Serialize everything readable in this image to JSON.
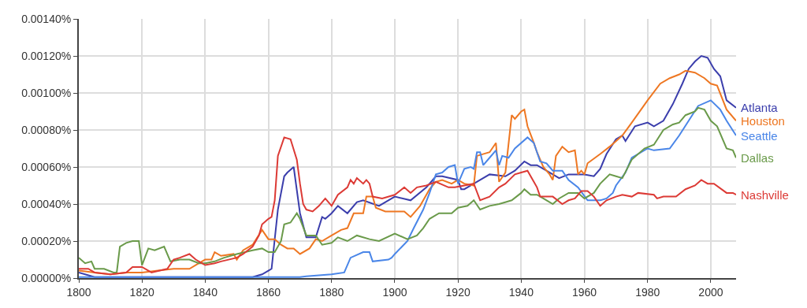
{
  "chart_data": {
    "type": "line",
    "xlim": [
      1800,
      2008
    ],
    "xticks": [
      1800,
      1820,
      1840,
      1860,
      1880,
      1900,
      1920,
      1940,
      1960,
      1980,
      2000
    ],
    "ylim": [
      0,
      0.0014
    ],
    "yticks": [
      {
        "value": 0,
        "label": "0.00000%"
      },
      {
        "value": 0.0002,
        "label": "0.00020%"
      },
      {
        "value": 0.0004,
        "label": "0.00040%"
      },
      {
        "value": 0.0006,
        "label": "0.00060%"
      },
      {
        "value": 0.0008,
        "label": "0.00080%"
      },
      {
        "value": 0.001,
        "label": "0.00100%"
      },
      {
        "value": 0.0012,
        "label": "0.00120%"
      },
      {
        "value": 0.0014,
        "label": "0.00140%"
      }
    ],
    "grid": true,
    "legend": false,
    "marker": "none",
    "line_style": "solid",
    "series": [
      {
        "name": "Atlanta",
        "color": "#3b3eac",
        "x": [
          1800,
          1805,
          1820,
          1855,
          1858,
          1860,
          1861,
          1863,
          1865,
          1866,
          1868,
          1870,
          1872,
          1875,
          1877,
          1878,
          1880,
          1882,
          1885,
          1888,
          1890,
          1895,
          1900,
          1905,
          1910,
          1913,
          1915,
          1920,
          1921,
          1922,
          1925,
          1930,
          1935,
          1938,
          1941,
          1943,
          1945,
          1948,
          1952,
          1955,
          1960,
          1963,
          1965,
          1967,
          1970,
          1972,
          1973,
          1976,
          1980,
          1982,
          1985,
          1988,
          1991,
          1993,
          1995,
          1997,
          1999,
          2001,
          2003,
          2005,
          2008
        ],
        "values": [
          3e-05,
          5e-06,
          5e-06,
          5e-06,
          2e-05,
          4e-05,
          5e-05,
          0.00037,
          0.00055,
          0.00057,
          0.0006,
          0.00035,
          0.00022,
          0.00022,
          0.00033,
          0.00032,
          0.00035,
          0.00039,
          0.00035,
          0.00041,
          0.00042,
          0.00039,
          0.00044,
          0.00042,
          0.00049,
          0.00055,
          0.00055,
          0.00053,
          0.00048,
          0.00048,
          0.00051,
          0.00056,
          0.00055,
          0.00058,
          0.00063,
          0.00061,
          0.00061,
          0.00058,
          0.00054,
          0.00056,
          0.00056,
          0.00055,
          0.00059,
          0.00067,
          0.00075,
          0.00077,
          0.00074,
          0.00082,
          0.00084,
          0.00082,
          0.00085,
          0.00094,
          0.00105,
          0.00113,
          0.00117,
          0.0012,
          0.00119,
          0.00113,
          0.00109,
          0.00096,
          0.00092
        ]
      },
      {
        "name": "Houston",
        "color": "#ee7722",
        "x": [
          1800,
          1805,
          1810,
          1815,
          1820,
          1825,
          1830,
          1835,
          1838,
          1840,
          1842,
          1843,
          1845,
          1849,
          1850,
          1852,
          1855,
          1858,
          1860,
          1862,
          1864,
          1866,
          1868,
          1870,
          1873,
          1875,
          1877,
          1880,
          1883,
          1885,
          1887,
          1890,
          1891,
          1893,
          1894,
          1897,
          1900,
          1903,
          1905,
          1908,
          1911,
          1913,
          1915,
          1918,
          1920,
          1922,
          1925,
          1926,
          1930,
          1932,
          1933,
          1935,
          1937,
          1938,
          1940,
          1941,
          1942,
          1944,
          1945,
          1947,
          1949,
          1950,
          1951,
          1953,
          1955,
          1957,
          1958,
          1959,
          1960,
          1961,
          1965,
          1968,
          1972,
          1975,
          1980,
          1984,
          1987,
          1990,
          1992,
          1995,
          1998,
          2000,
          2002,
          2005,
          2008
        ],
        "values": [
          4e-05,
          3e-05,
          2e-05,
          3e-05,
          3e-05,
          4e-05,
          5e-05,
          5e-05,
          8e-05,
          0.0001,
          0.0001,
          0.00014,
          0.00012,
          0.00013,
          0.0001,
          0.00015,
          0.00018,
          0.00026,
          0.00021,
          0.00021,
          0.00018,
          0.00016,
          0.00016,
          0.00013,
          0.00016,
          0.00021,
          0.0002,
          0.00023,
          0.00026,
          0.00027,
          0.00035,
          0.00035,
          0.00044,
          0.00044,
          0.00038,
          0.00036,
          0.00036,
          0.00036,
          0.00033,
          0.00039,
          0.00048,
          0.00052,
          0.00053,
          0.00051,
          0.00053,
          0.00051,
          0.0005,
          0.00066,
          0.00068,
          0.00073,
          0.00052,
          0.00057,
          0.00088,
          0.00086,
          0.0009,
          0.00091,
          0.00082,
          0.00073,
          0.00068,
          0.0006,
          0.00056,
          0.00053,
          0.00066,
          0.00071,
          0.00068,
          0.00069,
          0.00056,
          0.00058,
          0.00056,
          0.00062,
          0.00067,
          0.00071,
          0.00077,
          0.00084,
          0.00096,
          0.00105,
          0.00108,
          0.0011,
          0.00112,
          0.00111,
          0.00108,
          0.00105,
          0.00104,
          0.00091,
          0.00085
        ]
      },
      {
        "name": "Seattle",
        "color": "#4a86e8",
        "x": [
          1800,
          1870,
          1872,
          1880,
          1884,
          1886,
          1890,
          1892,
          1893,
          1898,
          1899,
          1900,
          1904,
          1906,
          1909,
          1911,
          1913,
          1915,
          1917,
          1919,
          1920,
          1922,
          1924,
          1925,
          1926,
          1927,
          1928,
          1930,
          1932,
          1933,
          1934,
          1936,
          1938,
          1942,
          1944,
          1946,
          1948,
          1950,
          1953,
          1955,
          1958,
          1961,
          1965,
          1967,
          1969,
          1970,
          1973,
          1975,
          1980,
          1982,
          1987,
          1990,
          1993,
          1996,
          2000,
          2003,
          2005,
          2008
        ],
        "values": [
          5e-06,
          5e-06,
          1e-05,
          2e-05,
          3e-05,
          0.00011,
          0.00014,
          0.00014,
          9e-05,
          0.0001,
          0.00011,
          0.00013,
          0.0002,
          0.00027,
          0.00037,
          0.00046,
          0.00056,
          0.00057,
          0.0006,
          0.00061,
          0.00051,
          0.00059,
          0.0006,
          0.00059,
          0.00068,
          0.00068,
          0.00061,
          0.00065,
          0.00069,
          0.00061,
          0.00066,
          0.00065,
          0.0007,
          0.00076,
          0.00073,
          0.00063,
          0.00062,
          0.00058,
          0.00058,
          0.00053,
          0.00049,
          0.00042,
          0.00042,
          0.00043,
          0.00046,
          0.0005,
          0.00057,
          0.00065,
          0.0007,
          0.00069,
          0.0007,
          0.00077,
          0.00085,
          0.00093,
          0.00096,
          0.00091,
          0.00085,
          0.00077
        ]
      },
      {
        "name": "Dallas",
        "color": "#6a9a4a",
        "x": [
          1800,
          1802,
          1804,
          1805,
          1808,
          1811,
          1812,
          1813,
          1815,
          1817,
          1819,
          1820,
          1822,
          1824,
          1827,
          1829,
          1832,
          1835,
          1838,
          1840,
          1843,
          1846,
          1850,
          1855,
          1858,
          1860,
          1862,
          1864,
          1865,
          1867,
          1869,
          1870,
          1872,
          1875,
          1877,
          1880,
          1882,
          1885,
          1888,
          1892,
          1895,
          1900,
          1904,
          1907,
          1909,
          1911,
          1914,
          1918,
          1920,
          1923,
          1925,
          1927,
          1930,
          1933,
          1937,
          1940,
          1941,
          1943,
          1945,
          1947,
          1950,
          1952,
          1955,
          1958,
          1960,
          1963,
          1965,
          1968,
          1970,
          1972,
          1975,
          1979,
          1982,
          1985,
          1988,
          1990,
          1992,
          1995,
          1996,
          1998,
          2000,
          2002,
          2005,
          2007,
          2008
        ],
        "values": [
          0.00011,
          8e-05,
          9e-05,
          5e-05,
          5e-05,
          3e-05,
          3e-05,
          0.00017,
          0.00019,
          0.0002,
          0.0002,
          7e-05,
          0.00016,
          0.00015,
          0.00017,
          9e-05,
          0.0001,
          0.0001,
          8e-05,
          8e-05,
          9e-05,
          0.00011,
          0.00013,
          0.00015,
          0.00016,
          0.00014,
          0.00014,
          0.0002,
          0.00029,
          0.0003,
          0.00035,
          0.00032,
          0.00023,
          0.00023,
          0.00018,
          0.00019,
          0.00022,
          0.0002,
          0.00023,
          0.00021,
          0.0002,
          0.00024,
          0.00021,
          0.00023,
          0.00027,
          0.00032,
          0.00035,
          0.00035,
          0.00038,
          0.00039,
          0.00042,
          0.00037,
          0.00039,
          0.0004,
          0.00042,
          0.00046,
          0.00048,
          0.00045,
          0.00045,
          0.00043,
          0.0004,
          0.00043,
          0.00046,
          0.00046,
          0.00043,
          0.00046,
          0.00051,
          0.00056,
          0.00055,
          0.00054,
          0.00064,
          0.0007,
          0.00072,
          0.0008,
          0.00083,
          0.00084,
          0.00088,
          0.0009,
          0.00092,
          0.00091,
          0.00085,
          0.00082,
          0.0007,
          0.00069,
          0.00065
        ]
      },
      {
        "name": "Nashville",
        "color": "#dc3a35",
        "x": [
          1800,
          1803,
          1805,
          1810,
          1815,
          1817,
          1820,
          1823,
          1828,
          1830,
          1832,
          1835,
          1837,
          1840,
          1843,
          1845,
          1850,
          1852,
          1855,
          1857,
          1858,
          1860,
          1861,
          1862,
          1863,
          1865,
          1867,
          1869,
          1870,
          1871,
          1872,
          1874,
          1876,
          1878,
          1880,
          1882,
          1885,
          1886,
          1887,
          1888,
          1890,
          1891,
          1892,
          1893,
          1896,
          1900,
          1903,
          1905,
          1907,
          1910,
          1913,
          1917,
          1919,
          1922,
          1925,
          1927,
          1930,
          1933,
          1935,
          1938,
          1940,
          1942,
          1944,
          1945,
          1946,
          1948,
          1950,
          1953,
          1955,
          1957,
          1959,
          1961,
          1963,
          1965,
          1967,
          1970,
          1972,
          1975,
          1977,
          1982,
          1983,
          1985,
          1989,
          1992,
          1995,
          1997,
          1999,
          2001,
          2005,
          2007,
          2008
        ],
        "values": [
          5e-05,
          5e-05,
          3e-05,
          2e-05,
          3e-05,
          6e-05,
          6e-05,
          3e-05,
          5e-05,
          0.0001,
          0.00011,
          0.00013,
          0.0001,
          7e-05,
          8e-05,
          9e-05,
          0.00011,
          0.00013,
          0.00017,
          0.00023,
          0.00029,
          0.00032,
          0.00033,
          0.00042,
          0.00066,
          0.00076,
          0.00075,
          0.00064,
          0.00051,
          0.0004,
          0.00037,
          0.00036,
          0.00039,
          0.00043,
          0.00039,
          0.00045,
          0.00049,
          0.00053,
          0.00051,
          0.00054,
          0.00051,
          0.00053,
          0.00051,
          0.00044,
          0.00043,
          0.00045,
          0.00049,
          0.00046,
          0.00049,
          0.0005,
          0.00052,
          0.00049,
          0.00049,
          0.0005,
          0.00051,
          0.00042,
          0.00044,
          0.00049,
          0.00051,
          0.00056,
          0.00057,
          0.00058,
          0.00052,
          0.00049,
          0.00044,
          0.00044,
          0.00044,
          0.0004,
          0.00042,
          0.00043,
          0.00047,
          0.00047,
          0.00044,
          0.00039,
          0.00042,
          0.00044,
          0.00045,
          0.00044,
          0.00046,
          0.00045,
          0.00043,
          0.00044,
          0.00044,
          0.00048,
          0.0005,
          0.00053,
          0.00051,
          0.00051,
          0.00046,
          0.00046,
          0.00045
        ]
      }
    ]
  }
}
